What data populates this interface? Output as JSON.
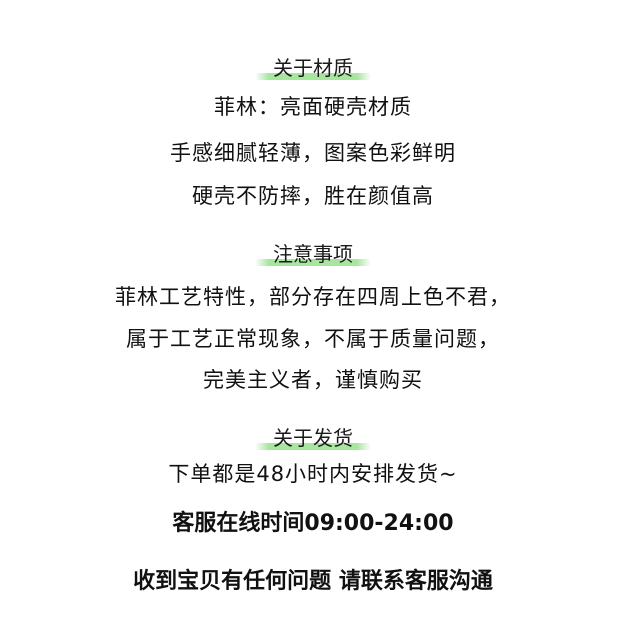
{
  "sections": [
    {
      "heading": "关于材质",
      "lines": [
        "菲林：亮面硬壳材质",
        "手感细腻轻薄，图案色彩鲜明",
        "硬壳不防摔，胜在颜值高"
      ]
    },
    {
      "heading": "注意事项",
      "lines": [
        "菲林工艺特性，部分存在四周上色不君，",
        "属于工艺正常现象，不属于质量问题，",
        "完美主义者，谨慎购买"
      ]
    },
    {
      "heading": "关于发货",
      "lines": [
        "下单都是48小时内安排发货~"
      ]
    }
  ],
  "notices": [
    "客服在线时间09:00-24:00",
    "收到宝贝有任何问题 请联系客服沟通"
  ],
  "colors": {
    "highlight": "#a8e6a0",
    "text": "#111111",
    "background": "#ffffff"
  }
}
